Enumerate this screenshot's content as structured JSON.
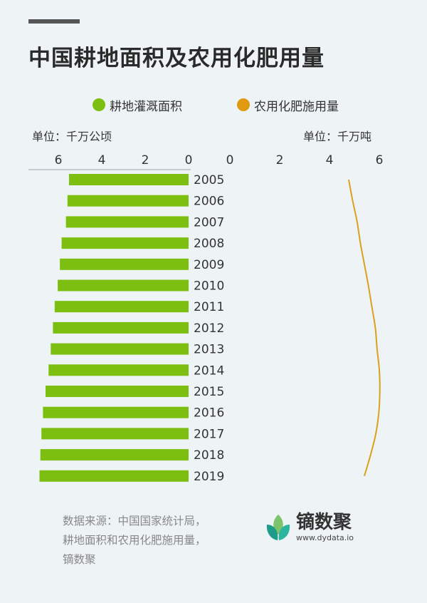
{
  "title": "中国耕地面积及农用化肥用量",
  "legend": [
    {
      "label": "耕地灌溉面积",
      "color": "#7cbf10"
    },
    {
      "label": "农用化肥施用量",
      "color": "#e09a10"
    }
  ],
  "unit_left": "单位：千万公顷",
  "unit_right": "单位：千万吨",
  "source_lines": [
    "数据来源：中国国家统计局，",
    "耕地面积和农用化肥施用量，",
    "镝数聚"
  ],
  "brand": {
    "name": "镝数聚",
    "url": "www.dydata.io"
  },
  "chart_data": {
    "type": "bar+line",
    "categories": [
      "2005",
      "2006",
      "2007",
      "2008",
      "2009",
      "2010",
      "2011",
      "2012",
      "2013",
      "2014",
      "2015",
      "2016",
      "2017",
      "2018",
      "2019"
    ],
    "series": [
      {
        "name": "耕地灌溉面积",
        "type": "bar",
        "unit": "千万公顷",
        "color": "#7cbf10",
        "values": [
          5.51,
          5.58,
          5.65,
          5.85,
          5.93,
          6.03,
          6.17,
          6.25,
          6.35,
          6.45,
          6.59,
          6.71,
          6.78,
          6.83,
          6.87
        ]
      },
      {
        "name": "农用化肥施用量",
        "type": "line",
        "unit": "千万吨",
        "color": "#d9a21a",
        "values": [
          4.77,
          4.93,
          5.11,
          5.24,
          5.4,
          5.56,
          5.7,
          5.84,
          5.91,
          6.0,
          6.02,
          5.98,
          5.86,
          5.65,
          5.4
        ]
      }
    ],
    "x_left": {
      "ticks": [
        6,
        4,
        2,
        0
      ],
      "range": [
        0,
        7
      ]
    },
    "x_right": {
      "ticks": [
        0,
        2,
        4,
        6
      ],
      "range": [
        0,
        6.2
      ]
    }
  }
}
